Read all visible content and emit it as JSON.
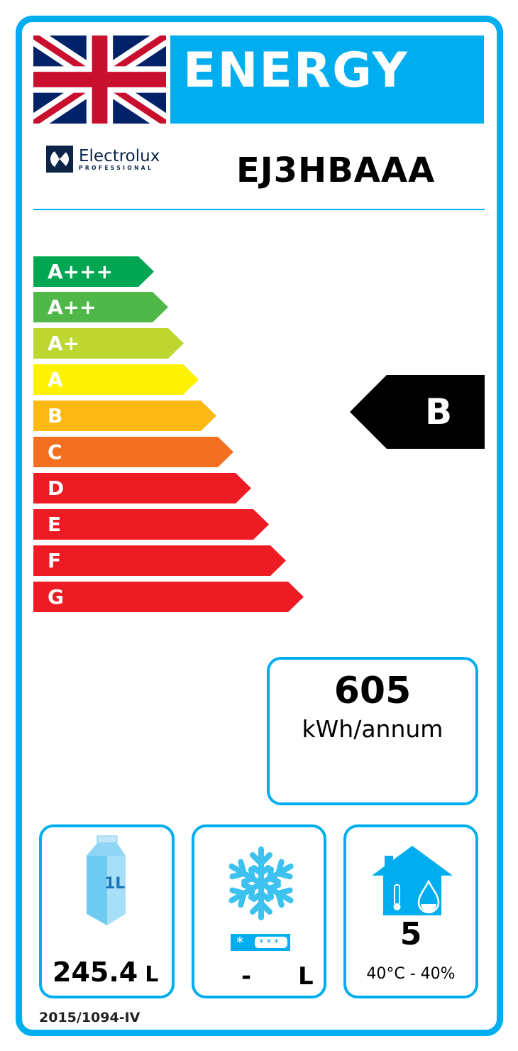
{
  "header": {
    "title": "ENERGY",
    "brand": "Electrolux",
    "brand_sub": "PROFESSIONAL",
    "model": "EJ3HBAAA"
  },
  "scale": [
    {
      "label": "A+++",
      "color": "#00A651"
    },
    {
      "label": "A++",
      "color": "#50B848"
    },
    {
      "label": "A+",
      "color": "#BED630"
    },
    {
      "label": "A",
      "color": "#FFF200"
    },
    {
      "label": "B",
      "color": "#FDB913"
    },
    {
      "label": "C",
      "color": "#F37021"
    },
    {
      "label": "D",
      "color": "#ED1C24"
    },
    {
      "label": "E",
      "color": "#ED1C24"
    },
    {
      "label": "F",
      "color": "#ED1C24"
    },
    {
      "label": "G",
      "color": "#ED1C24"
    }
  ],
  "rating": {
    "class": "B",
    "color": "#000000"
  },
  "consumption": {
    "value": "605",
    "unit": "kWh/annum"
  },
  "storage": {
    "volume": "245.4",
    "unit": "L",
    "icon_label": "1L"
  },
  "freezer": {
    "volume": "-",
    "unit": "L"
  },
  "climate": {
    "class": "5",
    "conditions": "40°C - 40%"
  },
  "regulation": "2015/1094-IV",
  "colors": {
    "accent": "#00AEEF"
  }
}
